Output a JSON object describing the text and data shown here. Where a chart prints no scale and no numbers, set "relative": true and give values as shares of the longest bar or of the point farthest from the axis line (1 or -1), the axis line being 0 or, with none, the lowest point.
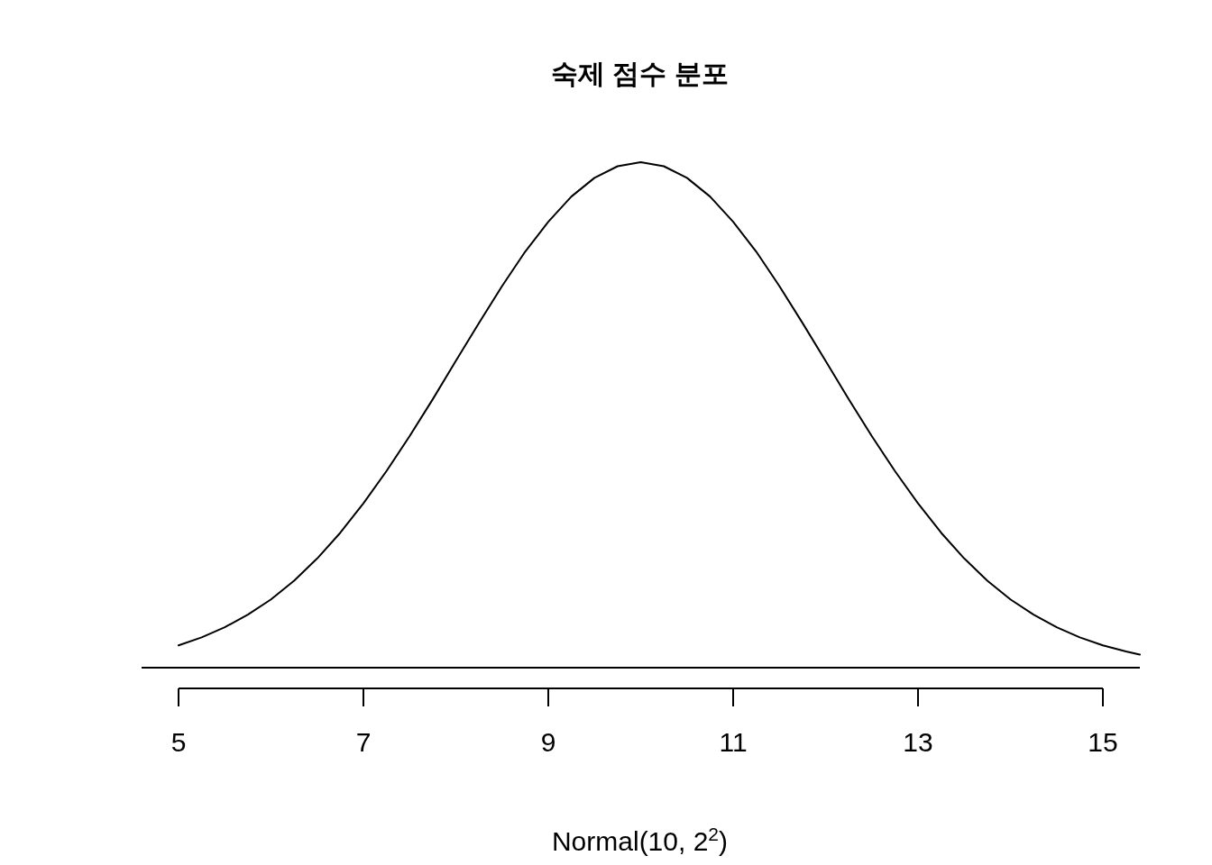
{
  "chart_data": {
    "type": "line",
    "title": "숙제 점수 분포",
    "xlabel": "Normal(10, 2$^{2}$)",
    "relative": true,
    "x": [
      5,
      5.25,
      5.5,
      5.75,
      6,
      6.25,
      6.5,
      6.75,
      7,
      7.25,
      7.5,
      7.75,
      8,
      8.25,
      8.5,
      8.75,
      9,
      9.25,
      9.5,
      9.75,
      10,
      10.25,
      10.5,
      10.75,
      11,
      11.25,
      11.5,
      11.75,
      12,
      12.25,
      12.5,
      12.75,
      13,
      13.25,
      13.5,
      13.75,
      14,
      14.25,
      14.5,
      14.75,
      15,
      15.25,
      15.4
    ],
    "series": [
      {
        "color": "#000000",
        "values": [
          0.044,
          0.06,
          0.08,
          0.105,
          0.135,
          0.172,
          0.216,
          0.267,
          0.325,
          0.389,
          0.458,
          0.531,
          0.607,
          0.682,
          0.755,
          0.823,
          0.882,
          0.932,
          0.969,
          0.992,
          1,
          0.992,
          0.969,
          0.932,
          0.882,
          0.823,
          0.755,
          0.682,
          0.607,
          0.531,
          0.458,
          0.389,
          0.325,
          0.267,
          0.216,
          0.172,
          0.135,
          0.105,
          0.08,
          0.06,
          0.044,
          0.032,
          0.026
        ]
      }
    ],
    "xlim": [
      4.6,
      15.4
    ],
    "xticks": [
      5,
      7,
      9,
      11,
      13,
      15
    ],
    "ref_lines": [
      {
        "axis": "y",
        "value": 0,
        "color": "#000000"
      }
    ],
    "grid": false,
    "marker": "none",
    "line_style": "solid"
  }
}
